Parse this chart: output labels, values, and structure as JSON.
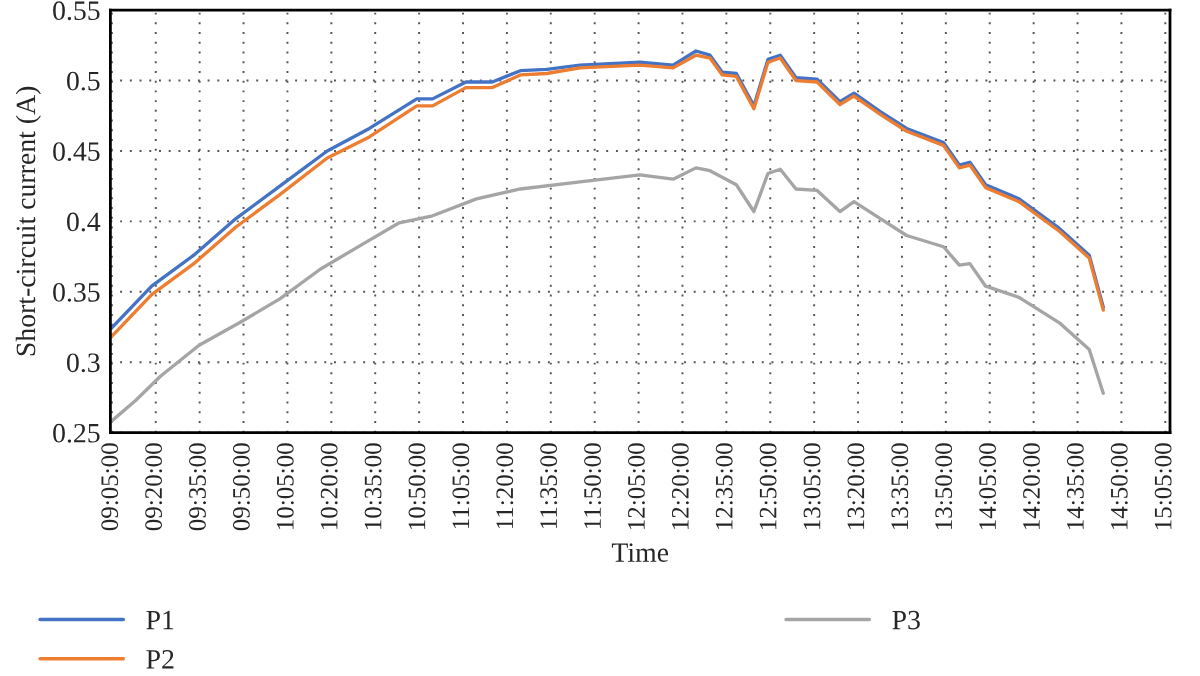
{
  "chart_data": {
    "type": "line",
    "xlabel": "Time",
    "ylabel": "Short-circuit current (A)",
    "xlim": [
      9.075,
      15.11
    ],
    "ylim": [
      0.25,
      0.55
    ],
    "yticks": [
      0.25,
      0.3,
      0.35,
      0.4,
      0.45,
      0.5,
      0.55
    ],
    "xticks": [
      {
        "value": 9.0833,
        "label": "09:05:00"
      },
      {
        "value": 9.3333,
        "label": "09:20:00"
      },
      {
        "value": 9.5833,
        "label": "09:35:00"
      },
      {
        "value": 9.8333,
        "label": "09:50:00"
      },
      {
        "value": 10.0833,
        "label": "10:05:00"
      },
      {
        "value": 10.3333,
        "label": "10:20:00"
      },
      {
        "value": 10.5833,
        "label": "10:35:00"
      },
      {
        "value": 10.8333,
        "label": "10:50:00"
      },
      {
        "value": 11.0833,
        "label": "11:05:00"
      },
      {
        "value": 11.3333,
        "label": "11:20:00"
      },
      {
        "value": 11.5833,
        "label": "11:35:00"
      },
      {
        "value": 11.8333,
        "label": "11:50:00"
      },
      {
        "value": 12.0833,
        "label": "12:05:00"
      },
      {
        "value": 12.3333,
        "label": "12:20:00"
      },
      {
        "value": 12.5833,
        "label": "12:35:00"
      },
      {
        "value": 12.8333,
        "label": "12:50:00"
      },
      {
        "value": 13.0833,
        "label": "13:05:00"
      },
      {
        "value": 13.3333,
        "label": "13:20:00"
      },
      {
        "value": 13.5833,
        "label": "13:35:00"
      },
      {
        "value": 13.8333,
        "label": "13:50:00"
      },
      {
        "value": 14.0833,
        "label": "14:05:00"
      },
      {
        "value": 14.3333,
        "label": "14:20:00"
      },
      {
        "value": 14.5833,
        "label": "14:35:00"
      },
      {
        "value": 14.8333,
        "label": "14:50:00"
      },
      {
        "value": 15.0833,
        "label": "15:05:00"
      }
    ],
    "grid": true,
    "legend": "bottom",
    "line_style": "solid",
    "series": [
      {
        "name": "P1",
        "color": "#4472c4",
        "x": [
          9.08,
          9.31,
          9.55,
          9.79,
          10.04,
          10.31,
          10.55,
          10.82,
          10.91,
          11.1,
          11.25,
          11.41,
          11.56,
          11.75,
          12.09,
          12.28,
          12.41,
          12.49,
          12.56,
          12.64,
          12.74,
          12.82,
          12.89,
          12.98,
          13.1,
          13.23,
          13.31,
          13.46,
          13.61,
          13.82,
          13.91,
          13.97,
          14.06,
          14.25,
          14.48,
          14.65,
          14.73
        ],
        "values": [
          0.324,
          0.354,
          0.376,
          0.402,
          0.425,
          0.45,
          0.466,
          0.487,
          0.487,
          0.499,
          0.499,
          0.507,
          0.508,
          0.511,
          0.513,
          0.511,
          0.521,
          0.518,
          0.506,
          0.505,
          0.482,
          0.515,
          0.518,
          0.502,
          0.501,
          0.485,
          0.491,
          0.478,
          0.466,
          0.456,
          0.44,
          0.442,
          0.426,
          0.416,
          0.395,
          0.376,
          0.339
        ]
      },
      {
        "name": "P2",
        "color": "#ed7d31",
        "x": [
          9.08,
          9.31,
          9.55,
          9.79,
          10.04,
          10.31,
          10.55,
          10.82,
          10.91,
          11.1,
          11.25,
          11.41,
          11.56,
          11.75,
          12.09,
          12.28,
          12.41,
          12.49,
          12.56,
          12.64,
          12.74,
          12.82,
          12.89,
          12.98,
          13.1,
          13.23,
          13.31,
          13.46,
          13.61,
          13.82,
          13.91,
          13.97,
          14.06,
          14.25,
          14.48,
          14.65,
          14.73
        ],
        "values": [
          0.318,
          0.348,
          0.37,
          0.396,
          0.419,
          0.445,
          0.46,
          0.482,
          0.482,
          0.495,
          0.495,
          0.504,
          0.505,
          0.509,
          0.511,
          0.509,
          0.518,
          0.516,
          0.504,
          0.503,
          0.48,
          0.513,
          0.516,
          0.5,
          0.499,
          0.483,
          0.489,
          0.476,
          0.464,
          0.454,
          0.438,
          0.44,
          0.424,
          0.414,
          0.393,
          0.374,
          0.337
        ]
      },
      {
        "name": "P3",
        "color": "#a5a5a5",
        "x": [
          9.08,
          9.22,
          9.36,
          9.58,
          9.81,
          10.04,
          10.27,
          10.5,
          10.72,
          10.91,
          11.16,
          11.41,
          11.75,
          12.09,
          12.28,
          12.41,
          12.49,
          12.64,
          12.74,
          12.82,
          12.89,
          12.98,
          13.1,
          13.23,
          13.31,
          13.46,
          13.61,
          13.82,
          13.91,
          13.97,
          14.06,
          14.25,
          14.48,
          14.65,
          14.73
        ],
        "values": [
          0.258,
          0.273,
          0.29,
          0.312,
          0.328,
          0.345,
          0.366,
          0.383,
          0.399,
          0.404,
          0.416,
          0.423,
          0.428,
          0.433,
          0.43,
          0.438,
          0.436,
          0.426,
          0.407,
          0.434,
          0.437,
          0.423,
          0.422,
          0.407,
          0.414,
          0.402,
          0.39,
          0.382,
          0.369,
          0.37,
          0.354,
          0.346,
          0.328,
          0.309,
          0.278
        ]
      }
    ]
  }
}
